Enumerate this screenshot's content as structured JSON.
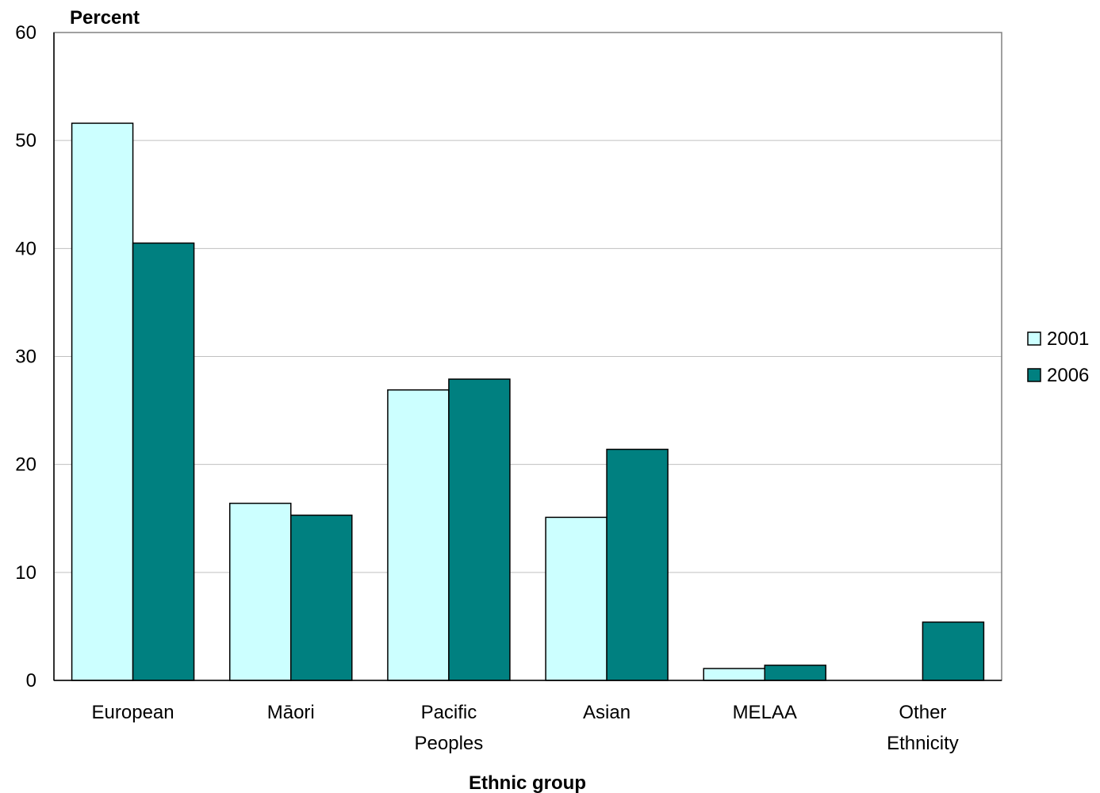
{
  "chart_data": {
    "type": "bar",
    "ylabel": "Percent",
    "xlabel": "Ethnic group",
    "ylim": [
      0,
      60
    ],
    "yticks": [
      0,
      10,
      20,
      30,
      40,
      50,
      60
    ],
    "grid": true,
    "legend_position": "right",
    "categories": [
      [
        "European"
      ],
      [
        "Māori"
      ],
      [
        "Pacific",
        "Peoples"
      ],
      [
        "Asian"
      ],
      [
        "MELAA"
      ],
      [
        "Other",
        "Ethnicity"
      ]
    ],
    "series": [
      {
        "name": "2001",
        "color": "#ccffff",
        "values": [
          51.6,
          16.4,
          26.9,
          15.1,
          1.1,
          0
        ]
      },
      {
        "name": "2006",
        "color": "#008080",
        "values": [
          40.5,
          15.3,
          27.9,
          21.4,
          1.4,
          5.4
        ]
      }
    ]
  }
}
